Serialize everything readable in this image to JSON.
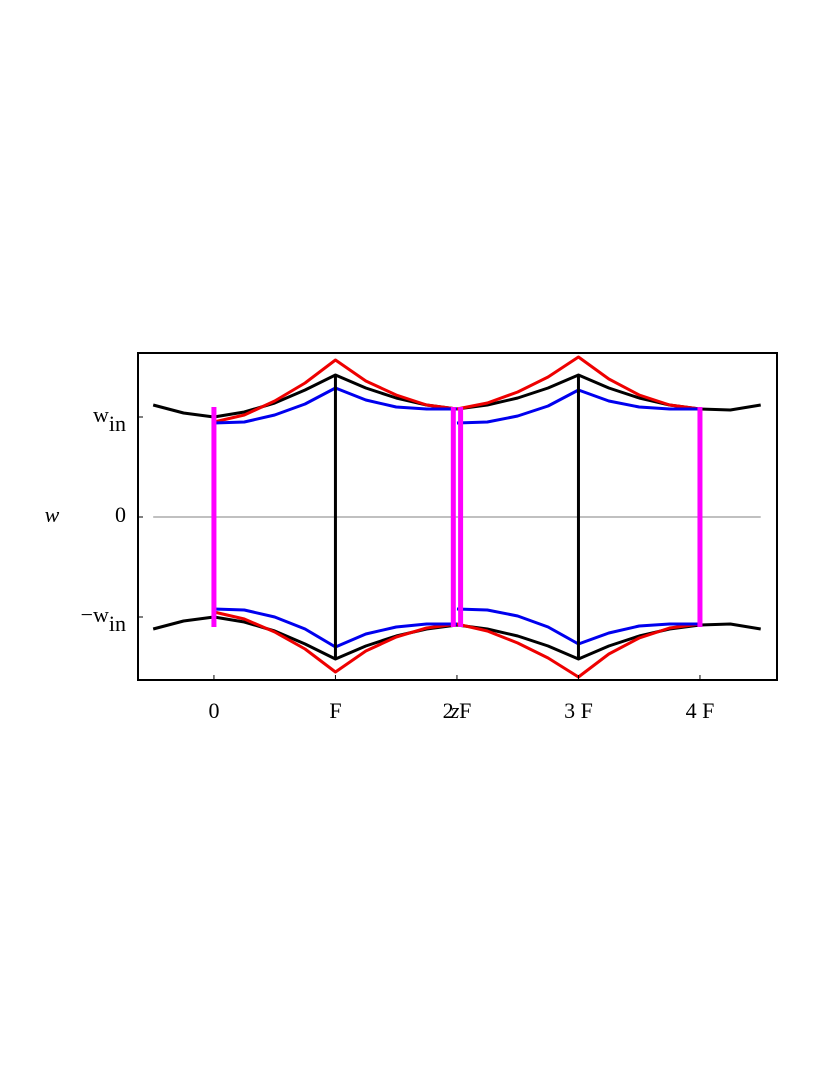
{
  "chart_data": {
    "type": "line",
    "x_label": "z",
    "y_label": "w",
    "xlim": [
      -0.625,
      4.634
    ],
    "ylim": [
      -1.63,
      1.64
    ],
    "xticks": [
      {
        "value": 0,
        "label": "0"
      },
      {
        "value": 1,
        "label": "F"
      },
      {
        "value": 2,
        "label": "2 F"
      },
      {
        "value": 3,
        "label": "3 F"
      },
      {
        "value": 4,
        "label": "4 F"
      }
    ],
    "yticks": [
      {
        "value": -1,
        "label": "−w",
        "subscript": "in"
      },
      0,
      {
        "value": 1,
        "label": "w",
        "subscript": "in"
      }
    ],
    "zero_line": true,
    "series": [
      {
        "color": "#000000",
        "linewidth": 3,
        "x": [
          -0.5,
          -0.25,
          0,
          0.25,
          0.5,
          0.75,
          1,
          1.25,
          1.5,
          1.75,
          2,
          2.25,
          2.5,
          2.75,
          3,
          3.25,
          3.5,
          3.75,
          4,
          4.25,
          4.5
        ],
        "values": [
          1.12,
          1.04,
          1.0,
          1.05,
          1.14,
          1.27,
          1.42,
          1.29,
          1.19,
          1.12,
          1.08,
          1.12,
          1.19,
          1.29,
          1.42,
          1.29,
          1.19,
          1.12,
          1.08,
          1.07,
          1.12
        ]
      },
      {
        "color": "#000000",
        "linewidth": 3,
        "x": [
          -0.5,
          -0.25,
          0,
          0.25,
          0.5,
          0.75,
          1,
          1.25,
          1.5,
          1.75,
          2,
          2.25,
          2.5,
          2.75,
          3,
          3.25,
          3.5,
          3.75,
          4,
          4.25,
          4.5
        ],
        "values": [
          -1.12,
          -1.04,
          -1.0,
          -1.05,
          -1.14,
          -1.27,
          -1.42,
          -1.29,
          -1.19,
          -1.12,
          -1.08,
          -1.12,
          -1.19,
          -1.29,
          -1.42,
          -1.29,
          -1.19,
          -1.12,
          -1.08,
          -1.07,
          -1.12
        ]
      },
      {
        "color": "#ee0000",
        "linewidth": 3,
        "x": [
          0,
          0.25,
          0.5,
          0.75,
          1,
          1.25,
          1.5,
          1.75,
          2,
          2.25,
          2.5,
          2.75,
          3,
          3.25,
          3.5,
          3.75,
          4
        ],
        "values": [
          0.95,
          1.02,
          1.16,
          1.34,
          1.57,
          1.36,
          1.22,
          1.12,
          1.08,
          1.14,
          1.25,
          1.4,
          1.6,
          1.38,
          1.22,
          1.12,
          1.08
        ]
      },
      {
        "color": "#ee0000",
        "linewidth": 3,
        "x": [
          0,
          0.25,
          0.5,
          0.75,
          1,
          1.25,
          1.5,
          1.75,
          2,
          2.25,
          2.5,
          2.75,
          3,
          3.25,
          3.5,
          3.75,
          4
        ],
        "values": [
          -0.95,
          -1.02,
          -1.15,
          -1.32,
          -1.55,
          -1.34,
          -1.2,
          -1.11,
          -1.07,
          -1.14,
          -1.26,
          -1.41,
          -1.6,
          -1.37,
          -1.21,
          -1.11,
          -1.07
        ]
      },
      {
        "color": "#0000ee",
        "linewidth": 3,
        "x": [
          0,
          0.25,
          0.5,
          0.75,
          1,
          1.25,
          1.5,
          1.75,
          2
        ],
        "values": [
          0.94,
          0.95,
          1.02,
          1.13,
          1.29,
          1.17,
          1.1,
          1.08,
          1.08
        ]
      },
      {
        "color": "#0000ee",
        "linewidth": 3,
        "x": [
          2,
          2.25,
          2.5,
          2.75,
          3,
          3.25,
          3.5,
          3.75,
          4
        ],
        "values": [
          0.94,
          0.95,
          1.01,
          1.11,
          1.27,
          1.16,
          1.1,
          1.08,
          1.08
        ]
      },
      {
        "color": "#0000ee",
        "linewidth": 3,
        "x": [
          0,
          0.25,
          0.5,
          0.75,
          1,
          1.25,
          1.5,
          1.75,
          2
        ],
        "values": [
          -0.92,
          -0.93,
          -1.0,
          -1.12,
          -1.3,
          -1.17,
          -1.1,
          -1.07,
          -1.07
        ]
      },
      {
        "color": "#0000ee",
        "linewidth": 3,
        "x": [
          2,
          2.25,
          2.5,
          2.75,
          3,
          3.25,
          3.5,
          3.75,
          4
        ],
        "values": [
          -0.92,
          -0.93,
          -0.99,
          -1.1,
          -1.27,
          -1.16,
          -1.09,
          -1.07,
          -1.07
        ]
      },
      {
        "color": "#000000",
        "linewidth": 3,
        "x": [
          1,
          1
        ],
        "values": [
          1.42,
          -1.42
        ]
      },
      {
        "color": "#000000",
        "linewidth": 3,
        "x": [
          3,
          3
        ],
        "values": [
          1.42,
          -1.42
        ]
      },
      {
        "color": "#ff00ff",
        "linewidth": 5,
        "x": [
          0,
          0
        ],
        "values": [
          1.1,
          -1.1
        ]
      },
      {
        "color": "#ff00ff",
        "linewidth": 5,
        "x": [
          1.97,
          1.97
        ],
        "values": [
          1.1,
          -1.1
        ]
      },
      {
        "color": "#ff00ff",
        "linewidth": 5,
        "x": [
          2.03,
          2.03
        ],
        "values": [
          1.1,
          -1.1
        ]
      },
      {
        "color": "#ff00ff",
        "linewidth": 5,
        "x": [
          4,
          4
        ],
        "values": [
          1.1,
          -1.1
        ]
      }
    ]
  }
}
